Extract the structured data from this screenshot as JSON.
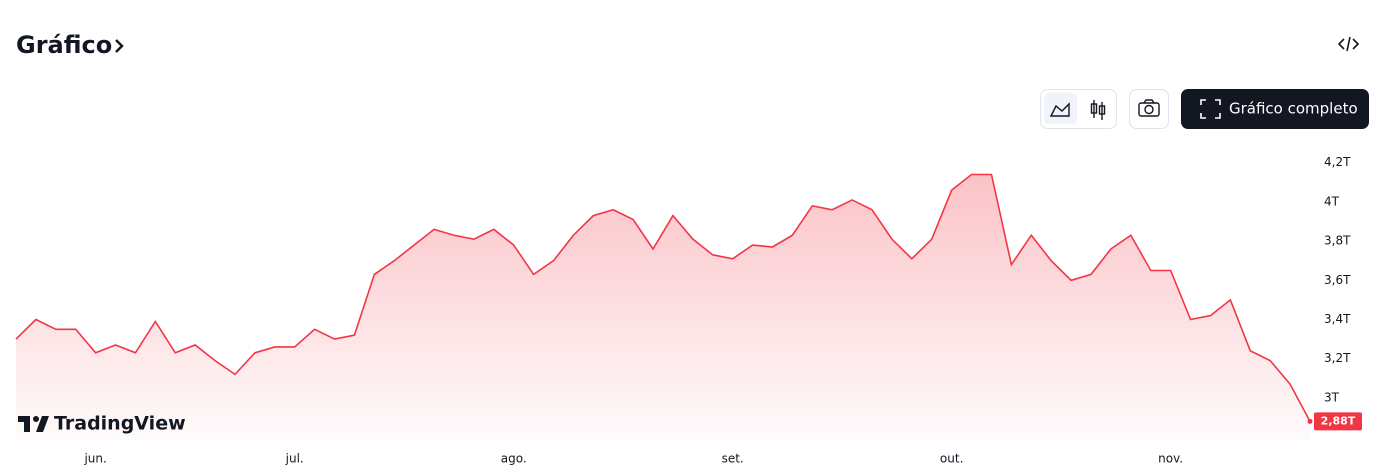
{
  "header": {
    "title": "Gráfico"
  },
  "toolbar": {
    "full_chart": "Gráfico completo"
  },
  "watermark": "TradingView",
  "chart_data": {
    "type": "area",
    "categories": [
      null,
      null,
      null,
      null,
      "jun.",
      null,
      null,
      null,
      null,
      null,
      null,
      null,
      null,
      null,
      "jul.",
      null,
      null,
      null,
      null,
      null,
      null,
      null,
      null,
      null,
      null,
      "ago.",
      null,
      null,
      null,
      null,
      null,
      null,
      null,
      null,
      null,
      null,
      "set.",
      null,
      null,
      null,
      null,
      null,
      null,
      null,
      null,
      null,
      null,
      "out.",
      null,
      null,
      null,
      null,
      null,
      null,
      null,
      null,
      null,
      null,
      "nov.",
      null,
      null,
      null,
      null,
      null,
      null,
      null
    ],
    "values": [
      3.3,
      3.4,
      3.35,
      3.35,
      3.23,
      3.27,
      3.23,
      3.39,
      3.23,
      3.27,
      3.19,
      3.12,
      3.23,
      3.26,
      3.26,
      3.35,
      3.3,
      3.32,
      3.63,
      3.7,
      3.78,
      3.86,
      3.83,
      3.81,
      3.86,
      3.78,
      3.63,
      3.7,
      3.83,
      3.93,
      3.96,
      3.91,
      3.76,
      3.93,
      3.81,
      3.73,
      3.71,
      3.78,
      3.77,
      3.83,
      3.98,
      3.96,
      4.01,
      3.96,
      3.81,
      3.71,
      3.81,
      4.06,
      4.14,
      4.14,
      3.68,
      3.83,
      3.7,
      3.6,
      3.63,
      3.76,
      3.83,
      3.65,
      3.65,
      3.4,
      3.42,
      3.5,
      3.24,
      3.19,
      3.07,
      2.88
    ],
    "value_labels": [
      null,
      null,
      null,
      null,
      null,
      null,
      null,
      null,
      null,
      null,
      null,
      null,
      null,
      null,
      null,
      null,
      null,
      null,
      null,
      null,
      null,
      null,
      null,
      null,
      null,
      null,
      null,
      null,
      null,
      null,
      null,
      null,
      null,
      null,
      null,
      null,
      null,
      null,
      null,
      null,
      null,
      null,
      null,
      null,
      null,
      null,
      null,
      null,
      null,
      null,
      null,
      null,
      null,
      null,
      null,
      null,
      null,
      null,
      null,
      null,
      null,
      null,
      null,
      null,
      null,
      "2,88T"
    ],
    "color": "#f23645",
    "ylim": [
      2.785,
      4.265
    ],
    "yticks": [
      {
        "value": 3,
        "label": "3T"
      },
      {
        "value": 3.2,
        "label": "3,2T"
      },
      {
        "value": 3.4,
        "label": "3,4T"
      },
      {
        "value": 3.6,
        "label": "3,6T"
      },
      {
        "value": 3.8,
        "label": "3,8T"
      },
      {
        "value": 4,
        "label": "4T"
      },
      {
        "value": 4.2,
        "label": "4,2T"
      }
    ],
    "grid": false
  }
}
